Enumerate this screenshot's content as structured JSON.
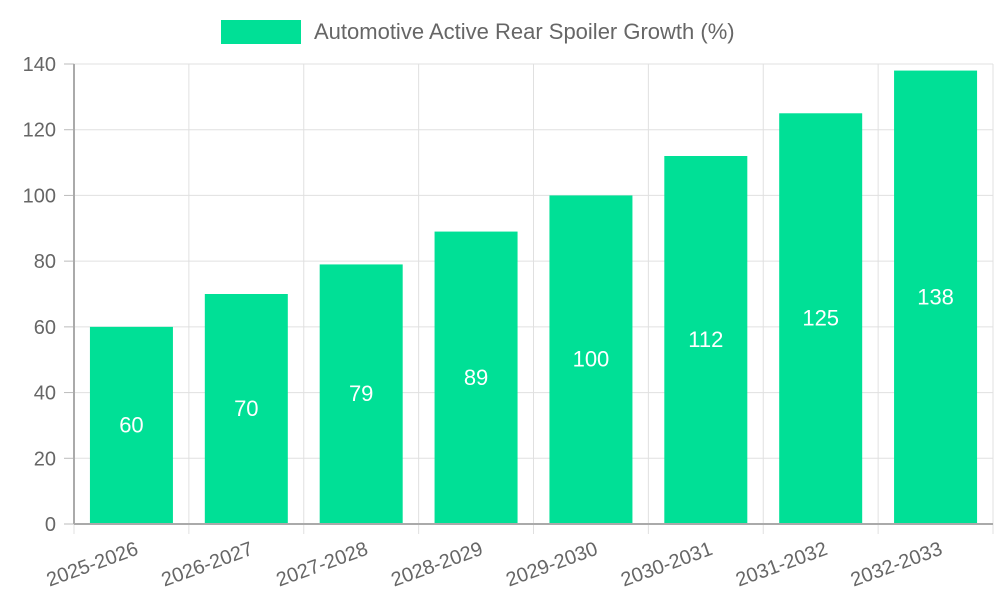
{
  "legend": {
    "label": "Automotive Active Rear Spoiler Growth (%)",
    "color": "#00e096"
  },
  "chart_data": {
    "type": "bar",
    "title": "",
    "categories": [
      "2025-2026",
      "2026-2027",
      "2027-2028",
      "2028-2029",
      "2029-2030",
      "2030-2031",
      "2031-2032",
      "2032-2033"
    ],
    "series": [
      {
        "name": "Automotive Active Rear Spoiler Growth (%)",
        "values": [
          60,
          70,
          79,
          89,
          100,
          112,
          125,
          138
        ],
        "color": "#00e096"
      }
    ],
    "xlabel": "",
    "ylabel": "",
    "ylim": [
      0,
      140
    ],
    "yticks": [
      0,
      20,
      40,
      60,
      80,
      100,
      120,
      140
    ],
    "grid": true,
    "legend_position": "top",
    "data_labels": true
  }
}
